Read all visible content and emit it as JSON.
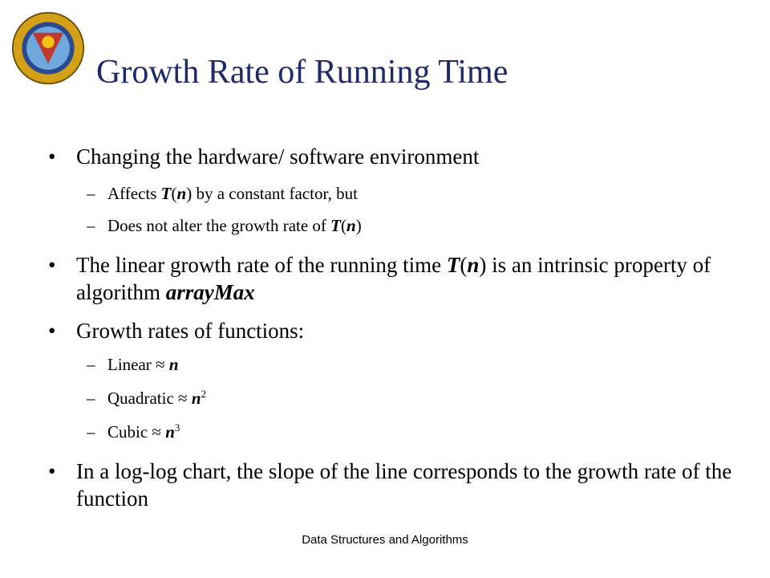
{
  "slide": {
    "title": "Growth Rate of Running Time",
    "footer": "Data Structures and Algorithms",
    "bullet_symbol": "•",
    "dash_symbol": "–"
  },
  "bullets": {
    "b1": {
      "text": "Changing the hardware/ software environment"
    },
    "b1_sub1": {
      "pre": "Affects ",
      "T": "T",
      "p1": "(",
      "n": "n",
      "p2": ")",
      "post": " by a constant factor, but"
    },
    "b1_sub2": {
      "pre": "Does not alter the growth rate of ",
      "T": "T",
      "p1": "(",
      "n": "n",
      "p2": ")"
    },
    "b2": {
      "pre": "The linear growth rate of the running time ",
      "T": "T",
      "p1": "(",
      "n": "n",
      "p2": ")",
      "mid": " is an intrinsic property of algorithm ",
      "algo": "arrayMax"
    },
    "b3": {
      "text": "Growth rates of functions:"
    },
    "b3_sub1": {
      "label": "Linear ",
      "approx": "≈",
      "var": "n"
    },
    "b3_sub2": {
      "label": "Quadratic ",
      "approx": "≈",
      "var": "n",
      "exp": "2"
    },
    "b3_sub3": {
      "label": "Cubic ",
      "approx": "≈",
      "var": "n",
      "exp": "3"
    },
    "b4": {
      "text": "In a log-log chart, the slope of the line corresponds to the growth rate of the function"
    }
  },
  "colors": {
    "title": "#1f2a6b",
    "logo_ring": "#d4a017",
    "logo_inner": "#2a4a8f",
    "logo_red": "#c0392b"
  }
}
